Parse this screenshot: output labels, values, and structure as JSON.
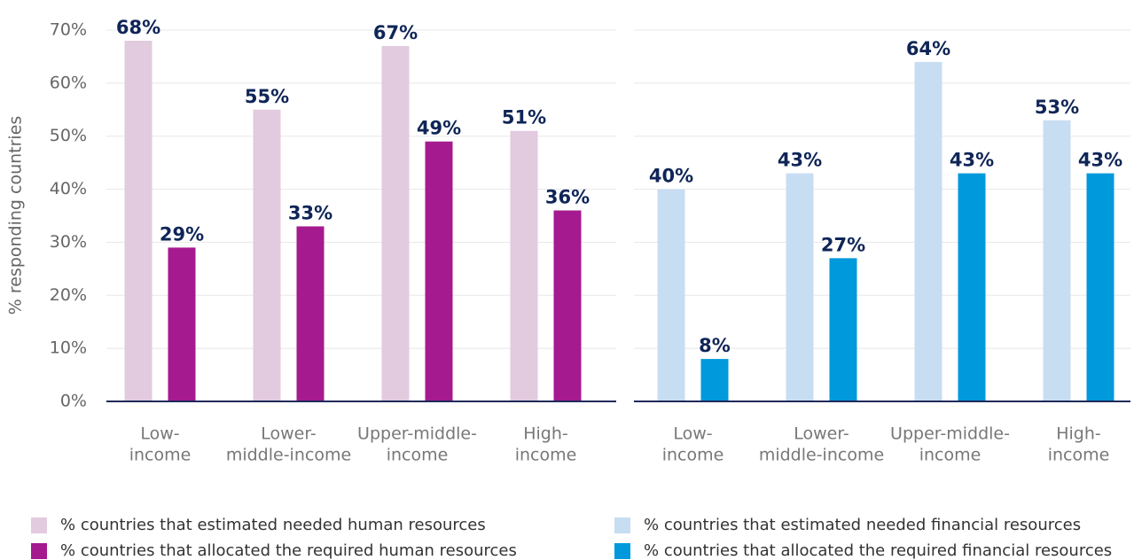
{
  "chart_data": [
    {
      "type": "bar",
      "y_label": "% responding countries",
      "categories": [
        [
          "Low-",
          "income"
        ],
        [
          "Lower-",
          "middle-income"
        ],
        [
          "Upper-middle-",
          "income"
        ],
        [
          "High-",
          "income"
        ]
      ],
      "series": [
        {
          "name": "% countries that estimated needed human resources",
          "color": "#e2cadf",
          "values": [
            68,
            55,
            67,
            51
          ],
          "value_labels": [
            "68%",
            "55%",
            "67%",
            "51%"
          ]
        },
        {
          "name": "% countries that allocated the required human resources",
          "color": "#a51a8f",
          "values": [
            29,
            33,
            49,
            36
          ],
          "value_labels": [
            "29%",
            "33%",
            "49%",
            "36%"
          ]
        }
      ],
      "ylim": [
        0,
        70
      ],
      "yticks": [
        {
          "value": 0,
          "label": "0%"
        },
        {
          "value": 10,
          "label": "10%"
        },
        {
          "value": 20,
          "label": "20%"
        },
        {
          "value": 30,
          "label": "30%"
        },
        {
          "value": 40,
          "label": "40%"
        },
        {
          "value": 50,
          "label": "50%"
        },
        {
          "value": 60,
          "label": "60%"
        },
        {
          "value": 70,
          "label": "70%"
        }
      ],
      "grid": true
    },
    {
      "type": "bar",
      "categories": [
        [
          "Low-",
          "income"
        ],
        [
          "Lower-",
          "middle-income"
        ],
        [
          "Upper-middle-",
          "income"
        ],
        [
          "High-",
          "income"
        ]
      ],
      "series": [
        {
          "name": "% countries that estimated needed financial resources",
          "color": "#c7ddf2",
          "values": [
            40,
            43,
            64,
            53
          ],
          "value_labels": [
            "40%",
            "43%",
            "64%",
            "53%"
          ]
        },
        {
          "name": "% countries that allocated the required financial resources",
          "color": "#0099dc",
          "values": [
            8,
            27,
            43,
            43
          ],
          "value_labels": [
            "8%",
            "27%",
            "43%",
            "43%"
          ]
        }
      ],
      "ylim": [
        0,
        70
      ],
      "grid": true
    }
  ]
}
